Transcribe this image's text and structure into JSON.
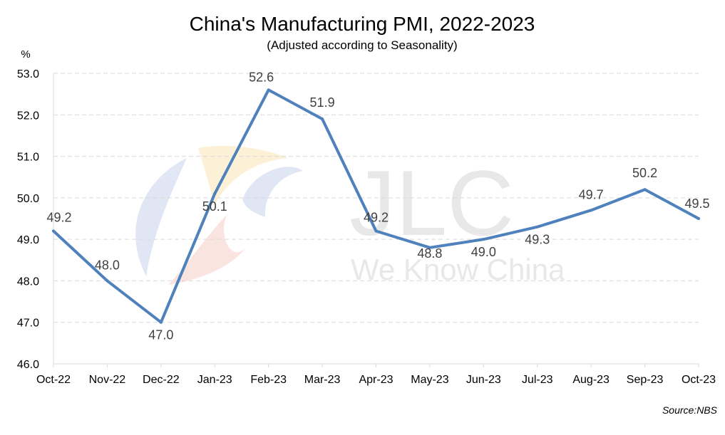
{
  "chart_data": {
    "type": "line",
    "title": "China's Manufacturing PMI, 2022-2023",
    "subtitle": "(Adjusted according to Seasonality)",
    "ylabel": "%",
    "xlabel": "",
    "categories": [
      "Oct-22",
      "Nov-22",
      "Dec-22",
      "Jan-23",
      "Feb-23",
      "Mar-23",
      "Apr-23",
      "May-23",
      "Jun-23",
      "Jul-23",
      "Aug-23",
      "Sep-23",
      "Oct-23"
    ],
    "series": [
      {
        "values": [
          49.2,
          48.0,
          47.0,
          50.1,
          52.6,
          51.9,
          49.2,
          48.8,
          49.0,
          49.3,
          49.7,
          50.2,
          49.5
        ],
        "color": "#4f81bd"
      }
    ],
    "data_labels": [
      "49.2",
      "48.0",
      "47.0",
      "50.1",
      "52.6",
      "51.9",
      "49.2",
      "48.8",
      "49.0",
      "49.3",
      "49.7",
      "50.2",
      "49.5"
    ],
    "ylim": [
      46.0,
      53.0
    ],
    "yticks": [
      "46.0",
      "47.0",
      "48.0",
      "49.0",
      "50.0",
      "51.0",
      "52.0",
      "53.0"
    ],
    "grid": "horizontal dashed",
    "source": "Source:NBS"
  },
  "watermark": {
    "brand": "JLC",
    "tagline": "We Know China"
  }
}
